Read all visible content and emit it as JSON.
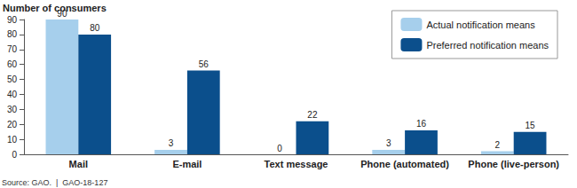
{
  "chart_data": {
    "type": "bar",
    "y_label": "Number of consumers",
    "categories": [
      "Mail",
      "E-mail",
      "Text message",
      "Phone (automated)",
      "Phone (live-person)"
    ],
    "series": [
      {
        "name": "Actual notification means",
        "color": "#a6cfec",
        "values": [
          90,
          3,
          0,
          3,
          2
        ]
      },
      {
        "name": "Preferred notification means",
        "color": "#0b4f8c",
        "values": [
          80,
          56,
          22,
          16,
          15
        ]
      }
    ],
    "ylim": [
      0,
      90
    ],
    "yticks": [
      0,
      10,
      20,
      30,
      40,
      50,
      60,
      70,
      80,
      90
    ],
    "grid": false,
    "legend": "top-right",
    "data_labels": true,
    "annotations": [
      "Source: GAO.  |  GAO-18-127"
    ]
  }
}
